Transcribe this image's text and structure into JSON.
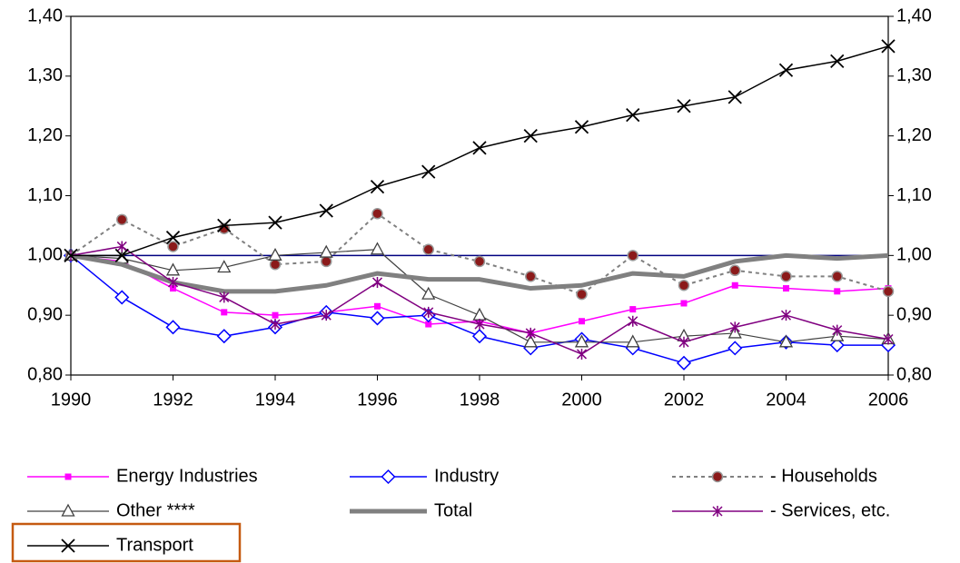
{
  "chart_data": {
    "type": "line",
    "x": [
      1990,
      1991,
      1992,
      1993,
      1994,
      1995,
      1996,
      1997,
      1998,
      1999,
      2000,
      2001,
      2002,
      2003,
      2004,
      2005,
      2006
    ],
    "xlim": [
      1990,
      2006
    ],
    "xticks": [
      1990,
      1992,
      1994,
      1996,
      1998,
      2000,
      2002,
      2004,
      2006
    ],
    "ylim": [
      0.8,
      1.4
    ],
    "yticks": [
      {
        "value": 0.8,
        "label": "0,80"
      },
      {
        "value": 0.9,
        "label": "0,90"
      },
      {
        "value": 1.0,
        "label": "1,00"
      },
      {
        "value": 1.1,
        "label": "1,10"
      },
      {
        "value": 1.2,
        "label": "1,20"
      },
      {
        "value": 1.3,
        "label": "1,30"
      },
      {
        "value": 1.4,
        "label": "1,40"
      }
    ],
    "y2lim": [
      0.8,
      1.4
    ],
    "y2ticks": [
      {
        "value": 0.8,
        "label": "0,80"
      },
      {
        "value": 0.9,
        "label": "0,90"
      },
      {
        "value": 1.0,
        "label": "1,00"
      },
      {
        "value": 1.1,
        "label": "1,10"
      },
      {
        "value": 1.2,
        "label": "1,20"
      },
      {
        "value": 1.3,
        "label": "1,30"
      },
      {
        "value": 1.4,
        "label": "1,40"
      }
    ],
    "reference_line": {
      "value": 1.0,
      "color": "#000080"
    },
    "series": [
      {
        "name": "Energy Industries",
        "color": "#ff00ff",
        "marker": "square",
        "width": 1.5,
        "dash": false,
        "values": [
          1.0,
          0.99,
          0.945,
          0.905,
          0.9,
          0.905,
          0.915,
          0.885,
          0.89,
          0.87,
          0.89,
          0.91,
          0.92,
          0.95,
          0.945,
          0.94,
          0.945
        ]
      },
      {
        "name": "Industry",
        "color": "#0000ff",
        "marker": "diamond",
        "width": 1.5,
        "dash": false,
        "values": [
          1.0,
          0.93,
          0.88,
          0.865,
          0.88,
          0.905,
          0.895,
          0.9,
          0.865,
          0.845,
          0.86,
          0.845,
          0.82,
          0.845,
          0.855,
          0.85,
          0.85
        ]
      },
      {
        "name": "- Households",
        "color": "#808080",
        "marker": "circle",
        "width": 2,
        "dash": true,
        "values": [
          1.0,
          1.06,
          1.015,
          1.045,
          0.985,
          0.99,
          1.07,
          1.01,
          0.99,
          0.965,
          0.935,
          1.0,
          0.95,
          0.975,
          0.965,
          0.965,
          0.94
        ]
      },
      {
        "name": "Other ****",
        "color": "#404040",
        "marker": "triangle",
        "width": 1.2,
        "dash": false,
        "values": [
          1.0,
          0.995,
          0.975,
          0.98,
          1.0,
          1.005,
          1.01,
          0.935,
          0.9,
          0.855,
          0.855,
          0.855,
          0.865,
          0.87,
          0.855,
          0.865,
          0.86
        ]
      },
      {
        "name": "Total",
        "color": "#808080",
        "marker": "none",
        "width": 5,
        "dash": false,
        "values": [
          1.0,
          0.985,
          0.955,
          0.94,
          0.94,
          0.95,
          0.97,
          0.96,
          0.96,
          0.945,
          0.95,
          0.97,
          0.965,
          0.99,
          1.0,
          0.995,
          1.0
        ]
      },
      {
        "name": "- Services, etc.",
        "color": "#800080",
        "marker": "star",
        "width": 1.5,
        "dash": false,
        "values": [
          1.0,
          1.015,
          0.955,
          0.93,
          0.885,
          0.9,
          0.955,
          0.905,
          0.885,
          0.87,
          0.835,
          0.89,
          0.855,
          0.88,
          0.9,
          0.875,
          0.86
        ]
      },
      {
        "name": "Transport",
        "color": "#000000",
        "marker": "x",
        "width": 1.5,
        "dash": false,
        "values": [
          1.0,
          1.0,
          1.03,
          1.05,
          1.055,
          1.075,
          1.115,
          1.14,
          1.18,
          1.2,
          1.215,
          1.235,
          1.25,
          1.265,
          1.31,
          1.325,
          1.35
        ]
      }
    ]
  }
}
